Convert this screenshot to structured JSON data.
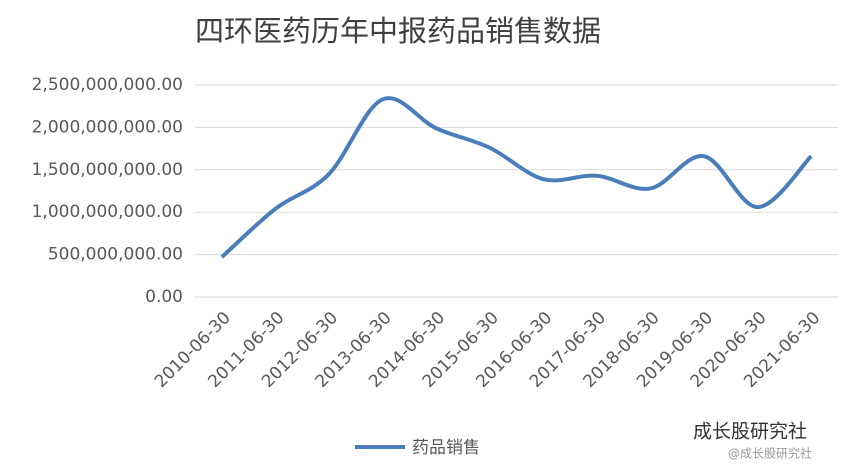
{
  "chart_data": {
    "type": "line",
    "title": "四环医药历年中报药品销售数据",
    "categories": [
      "2010-06-30",
      "2011-06-30",
      "2012-06-30",
      "2013-06-30",
      "2014-06-30",
      "2015-06-30",
      "2016-06-30",
      "2017-06-30",
      "2018-06-30",
      "2019-06-30",
      "2020-06-30",
      "2021-06-30"
    ],
    "series": [
      {
        "name": "药品销售",
        "color": "#4a7ebb",
        "values": [
          470000000,
          1040000000,
          1450000000,
          2330000000,
          1990000000,
          1760000000,
          1390000000,
          1430000000,
          1280000000,
          1660000000,
          1060000000,
          1660000000
        ]
      }
    ],
    "ylim": [
      0,
      2500000000
    ],
    "yticks": [
      {
        "value": 0,
        "label": "0.00"
      },
      {
        "value": 500000000,
        "label": "500,000,000.00"
      },
      {
        "value": 1000000000,
        "label": "1,000,000,000.00"
      },
      {
        "value": 1500000000,
        "label": "1,500,000,000.00"
      },
      {
        "value": 2000000000,
        "label": "2,000,000,000.00"
      },
      {
        "value": 2500000000,
        "label": "2,500,000,000.00"
      }
    ],
    "grid": true,
    "smooth": true,
    "legend": "bottom",
    "annotations": [
      "成长股研究社",
      "@成长股研究社"
    ]
  }
}
